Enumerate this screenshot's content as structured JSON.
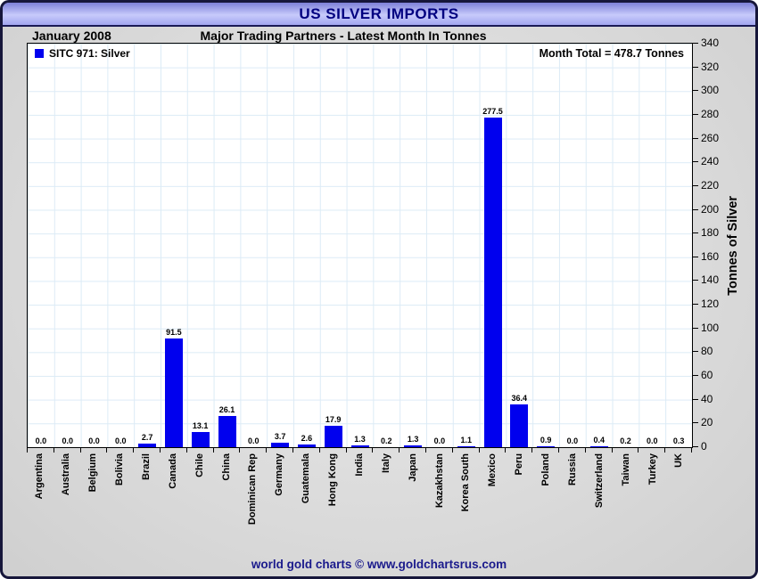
{
  "window": {
    "title": "US SILVER IMPORTS",
    "footer": "world gold charts © www.goldchartsrus.com"
  },
  "header": {
    "date_label": "January 2008",
    "subtitle": "Major Trading Partners - Latest Month In Tonnes"
  },
  "legend": {
    "label": "SITC 971: Silver",
    "swatch_color": "#0000ee"
  },
  "annotations": {
    "month_total": "Month Total = 478.7 Tonnes"
  },
  "colors": {
    "bar": "#0000ee",
    "title_text": "#000080",
    "footer_text": "#1a1a8c",
    "gridline": "#dcebf6",
    "titlebar_gradient_top": "#7d80d8",
    "titlebar_gradient_mid": "#c7cafb",
    "titlebar_gradient_bottom": "#a2a6f0",
    "window_border": "#16163a",
    "background_gray": "#dadada"
  },
  "chart_data": {
    "type": "bar",
    "title": "US SILVER IMPORTS",
    "subtitle": "Major Trading Partners - Latest Month In Tonnes",
    "period": "January 2008",
    "series_name": "SITC 971: Silver",
    "month_total_tonnes": 478.7,
    "categories": [
      "Argentina",
      "Australia",
      "Belgium",
      "Bolivia",
      "Brazil",
      "Canada",
      "Chile",
      "China",
      "Dominican Rep",
      "Germany",
      "Guatemala",
      "Hong Kong",
      "India",
      "Italy",
      "Japan",
      "Kazakhstan",
      "Korea South",
      "Mexico",
      "Peru",
      "Poland",
      "Russia",
      "Switzerland",
      "Taiwan",
      "Turkey",
      "UK"
    ],
    "values": [
      0.0,
      0.0,
      0.0,
      0.0,
      2.7,
      91.5,
      13.1,
      26.1,
      0.0,
      3.7,
      2.6,
      17.9,
      1.3,
      0.2,
      1.3,
      0.0,
      1.1,
      277.5,
      36.4,
      0.9,
      0.0,
      0.4,
      0.2,
      0.0,
      0.3
    ],
    "xlabel": "",
    "ylabel": "Tonnes of Silver",
    "ylim": [
      0,
      340
    ],
    "ytick_step": 20,
    "grid": true,
    "legend_position": "top-left",
    "value_labels": true
  }
}
